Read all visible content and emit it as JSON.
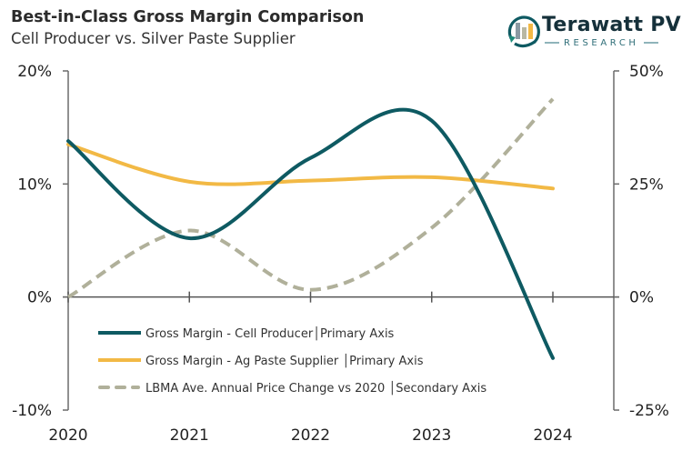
{
  "header": {
    "title": "Best-in-Class Gross Margin Comparison",
    "subtitle": "Cell Producer vs. Silver Paste Supplier"
  },
  "logo": {
    "name": "Terawatt PV",
    "tagline": "RESEARCH",
    "colors": {
      "arc": "#0e5a62",
      "bar1": "#8a9aa3",
      "bar2": "#b8b7a3",
      "bar3": "#f2b945"
    }
  },
  "chart_data": {
    "type": "line",
    "title": "Best-in-Class Gross Margin Comparison",
    "subtitle": "Cell Producer vs. Silver Paste Supplier",
    "x": [
      2020,
      2021,
      2022,
      2023,
      2024
    ],
    "x_tick_labels": [
      "2020",
      "2021",
      "2022",
      "2023",
      "2024"
    ],
    "y_primary": {
      "range": [
        -10,
        20
      ],
      "ticks": [
        -10,
        0,
        10,
        20
      ],
      "tick_labels": [
        "-10%",
        "0%",
        "10%",
        "20%"
      ]
    },
    "y_secondary": {
      "range": [
        -25,
        50
      ],
      "ticks": [
        -25,
        0,
        25,
        50
      ],
      "tick_labels": [
        "-25%",
        "0%",
        "25%",
        "50%"
      ]
    },
    "grid": false,
    "smooth": true,
    "legend_position": "bottom-left-inside",
    "series": [
      {
        "name": "Gross Margin - Cell Producer│Primary Axis",
        "axis": "primary",
        "style": "solid",
        "color": "#0e5a62",
        "values": [
          13.8,
          5.2,
          12.3,
          15.6,
          -5.4
        ]
      },
      {
        "name": "Gross Margin - Ag Paste Supplier │Primary Axis",
        "axis": "primary",
        "style": "solid",
        "color": "#f2b945",
        "values": [
          13.5,
          10.2,
          10.3,
          10.6,
          9.6
        ]
      },
      {
        "name": "LBMA Ave. Annual Price Change vs 2020 │Secondary Axis",
        "axis": "secondary",
        "style": "dashed",
        "color": "#b0b09a",
        "values": [
          0,
          14.7,
          1.6,
          15.3,
          43.8
        ]
      }
    ]
  }
}
